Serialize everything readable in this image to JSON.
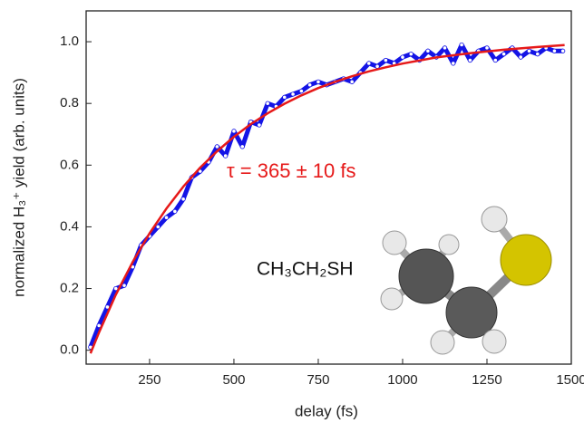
{
  "chart_data": {
    "type": "line",
    "x_label": "delay (fs)",
    "y_label": "normalized H₃⁺ yield (arb. units)",
    "annotations": [
      "τ = 365 ± 10 fs",
      "CH₃CH₂SH"
    ],
    "xlim": [
      62,
      1500
    ],
    "ylim": [
      -0.045,
      1.1
    ],
    "xticks": [
      250,
      500,
      750,
      1000,
      1250,
      1500
    ],
    "yticks": [
      {
        "value": 0,
        "label": "0.0"
      },
      0.2,
      0.4,
      0.6,
      0.8,
      {
        "value": 1,
        "label": "1.0"
      }
    ],
    "series": [
      {
        "color": "#1414e6",
        "markers": true,
        "x": [
          75,
          100,
          125,
          150,
          175,
          200,
          225,
          250,
          275,
          300,
          325,
          350,
          375,
          400,
          425,
          450,
          475,
          500,
          525,
          550,
          575,
          600,
          625,
          650,
          675,
          700,
          725,
          750,
          775,
          800,
          825,
          850,
          875,
          900,
          925,
          950,
          975,
          1000,
          1025,
          1050,
          1075,
          1100,
          1125,
          1150,
          1175,
          1200,
          1225,
          1250,
          1275,
          1300,
          1325,
          1350,
          1375,
          1400,
          1425,
          1450,
          1475
        ],
        "values": [
          0.01,
          0.08,
          0.14,
          0.2,
          0.21,
          0.27,
          0.34,
          0.37,
          0.4,
          0.43,
          0.45,
          0.49,
          0.56,
          0.58,
          0.61,
          0.66,
          0.63,
          0.71,
          0.66,
          0.74,
          0.73,
          0.8,
          0.79,
          0.82,
          0.83,
          0.84,
          0.86,
          0.87,
          0.86,
          0.87,
          0.88,
          0.87,
          0.9,
          0.93,
          0.92,
          0.94,
          0.93,
          0.95,
          0.96,
          0.94,
          0.97,
          0.95,
          0.98,
          0.93,
          0.99,
          0.94,
          0.97,
          0.98,
          0.94,
          0.96,
          0.98,
          0.95,
          0.97,
          0.96,
          0.98,
          0.97,
          0.97
        ]
      },
      {
        "color": "#e61919",
        "markers": false,
        "x": [
          75,
          100,
          150,
          200,
          250,
          300,
          350,
          400,
          450,
          500,
          550,
          600,
          650,
          700,
          750,
          800,
          850,
          900,
          950,
          1000,
          1100,
          1200,
          1300,
          1400,
          1480
        ],
        "values": [
          -0.01,
          0.057,
          0.18,
          0.286,
          0.379,
          0.459,
          0.53,
          0.592,
          0.645,
          0.692,
          0.733,
          0.768,
          0.799,
          0.826,
          0.85,
          0.87,
          0.888,
          0.904,
          0.917,
          0.929,
          0.949,
          0.963,
          0.974,
          0.983,
          0.989
        ]
      }
    ]
  }
}
